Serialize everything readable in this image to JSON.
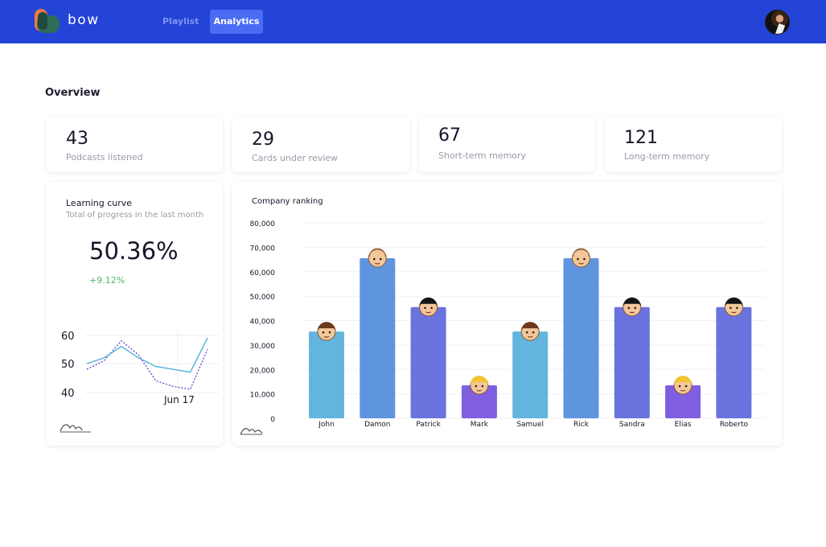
{
  "header": {
    "brand": "bow",
    "tabs": [
      {
        "label": "Playlist",
        "active": false
      },
      {
        "label": "Analytics",
        "active": true
      }
    ],
    "colors": {
      "bar": "#2344d6",
      "active_tab": "#4a6cf5"
    }
  },
  "overview": {
    "title": "Overview",
    "stats": [
      {
        "value": "43",
        "label": "Podcasts listened"
      },
      {
        "value": "29",
        "label": "Cards under review"
      },
      {
        "value": "67",
        "label": "Short-term memory"
      },
      {
        "value": "121",
        "label": "Long-term memory"
      }
    ]
  },
  "learning_curve": {
    "title": "Learning curve",
    "subtitle": "Total of progress in the last month",
    "percent": "50.36%",
    "delta": "+9.12%",
    "chart": {
      "y_ticks": [
        "60",
        "50",
        "40"
      ],
      "x_label": "Jun 17",
      "series_solid": [
        50,
        52,
        56,
        52,
        49,
        48,
        47,
        59
      ],
      "series_dotted": [
        48,
        51,
        58,
        53,
        44,
        42,
        41,
        55
      ],
      "colors": {
        "solid": "#4fb0dc",
        "dotted": "#6a4bd4"
      }
    }
  },
  "ranking": {
    "title": "Company ranking",
    "chart_data": {
      "type": "bar",
      "categories": [
        "John",
        "Damon",
        "Patrick",
        "Mark",
        "Samuel",
        "Rick",
        "Sandra",
        "Elias",
        "Roberto"
      ],
      "values": [
        35500,
        65500,
        45500,
        13500,
        35500,
        65500,
        45500,
        13500,
        45500
      ],
      "colors": [
        "#63b5dd",
        "#5f95df",
        "#6a72dd",
        "#7f5fe0",
        "#63b5dd",
        "#5f95df",
        "#6a72dd",
        "#7f5fe0",
        "#6a72dd"
      ],
      "avatars": [
        "brown-hair",
        "bald",
        "black-hair",
        "blonde",
        "brown-hair",
        "bald",
        "black-hair",
        "blonde",
        "black-hair"
      ],
      "y_ticks": [
        "80,000",
        "70,000",
        "60,000",
        "50,000",
        "40,000",
        "30,000",
        "20,000",
        "10,000",
        "0"
      ],
      "ylim": [
        0,
        80000
      ],
      "grid": true
    }
  }
}
